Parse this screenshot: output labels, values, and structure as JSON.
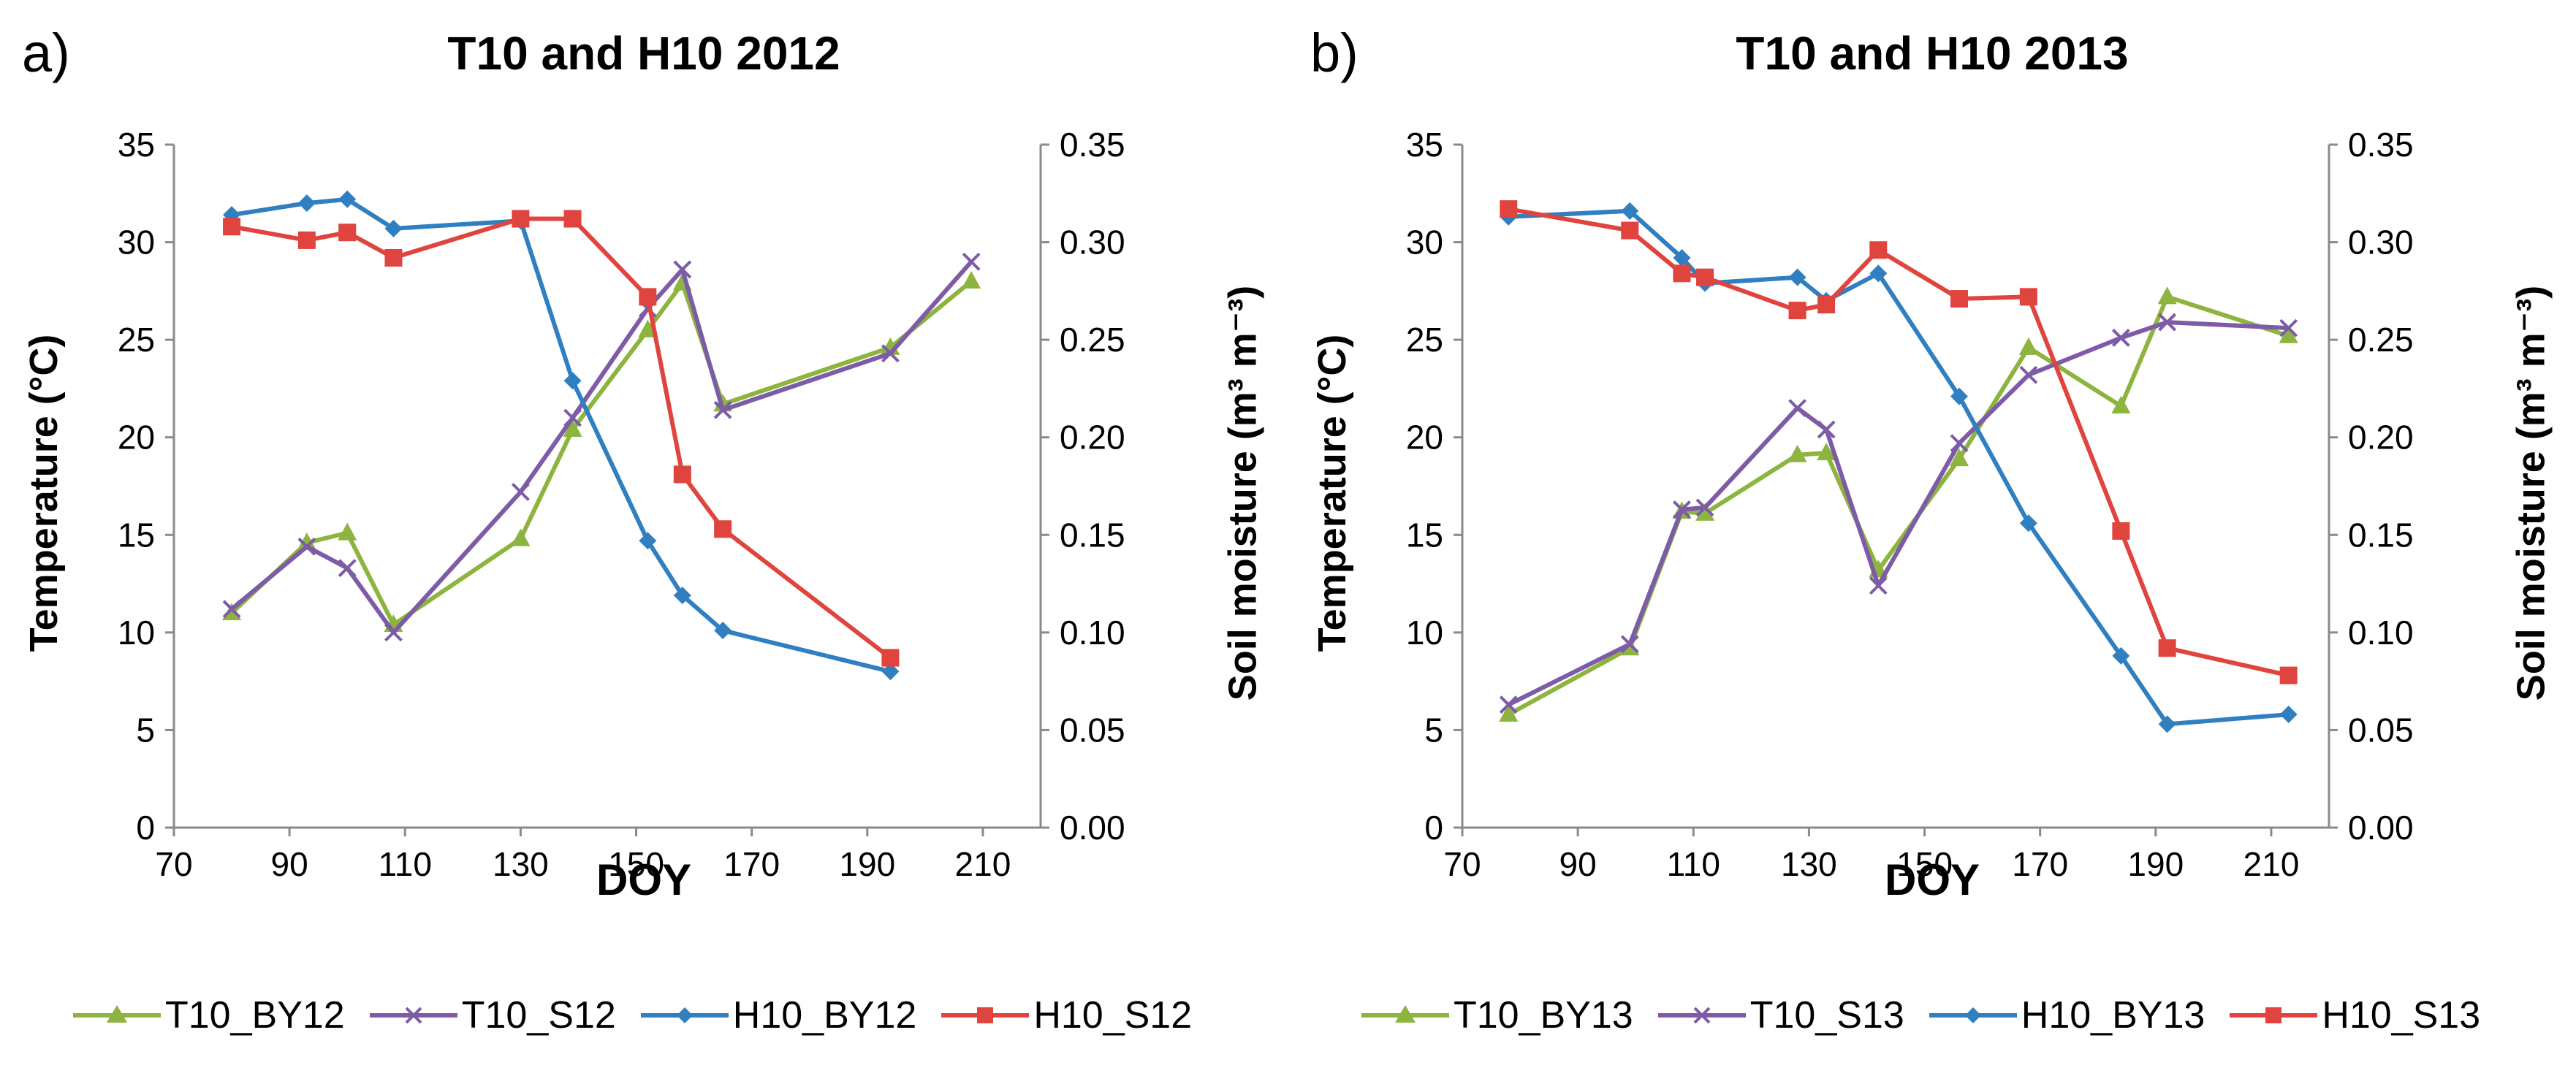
{
  "chart_data": [
    {
      "type": "line",
      "panel_label": "a)",
      "title": "T10 and H10 2012",
      "xlabel": "DOY",
      "ylabel": "Temperature (°C)",
      "ylabel_right": "Soil moisture (m³ m⁻³)",
      "xlim": [
        70,
        220
      ],
      "ylim": [
        0,
        35
      ],
      "y2lim": [
        0,
        0.35
      ],
      "x_ticks": [
        "70",
        "90",
        "110",
        "130",
        "150",
        "170",
        "190",
        "210"
      ],
      "x_tick_values": [
        70,
        90,
        110,
        130,
        150,
        170,
        190,
        210
      ],
      "y_ticks": [
        "0",
        "5",
        "10",
        "15",
        "20",
        "25",
        "30",
        "35"
      ],
      "y_tick_values": [
        0,
        5,
        10,
        15,
        20,
        25,
        30,
        35
      ],
      "y2_ticks": [
        "0.00",
        "0.05",
        "0.10",
        "0.15",
        "0.20",
        "0.25",
        "0.30",
        "0.35"
      ],
      "y2_tick_values": [
        0,
        0.05,
        0.1,
        0.15,
        0.2,
        0.25,
        0.3,
        0.35
      ],
      "legend_position": "bottom",
      "series": [
        {
          "name": "T10_BY12",
          "axis": "left",
          "marker": "triangle",
          "color": "#8DB43E",
          "x": [
            80,
            93,
            100,
            108,
            130,
            139,
            152,
            158,
            165,
            194,
            208
          ],
          "values": [
            11.0,
            14.6,
            15.1,
            10.4,
            14.8,
            20.4,
            25.5,
            27.9,
            21.7,
            24.6,
            28.0
          ]
        },
        {
          "name": "T10_S12",
          "axis": "left",
          "marker": "x",
          "color": "#7D5BA6",
          "x": [
            80,
            93,
            100,
            108,
            130,
            139,
            152,
            158,
            165,
            194,
            208
          ],
          "values": [
            11.2,
            14.4,
            13.3,
            10.0,
            17.2,
            21.0,
            26.6,
            28.6,
            21.4,
            24.3,
            29.0
          ]
        },
        {
          "name": "H10_BY12",
          "axis": "right",
          "marker": "diamond",
          "color": "#2F7FC1",
          "x": [
            80,
            93,
            100,
            108,
            130,
            139,
            152,
            158,
            165,
            194
          ],
          "values": [
            0.314,
            0.32,
            0.322,
            0.307,
            0.311,
            0.229,
            0.147,
            0.119,
            0.101,
            0.08
          ]
        },
        {
          "name": "H10_S12",
          "axis": "right",
          "marker": "square",
          "color": "#E0443E",
          "x": [
            80,
            93,
            100,
            108,
            130,
            139,
            152,
            158,
            165,
            194
          ],
          "values": [
            0.308,
            0.301,
            0.305,
            0.292,
            0.312,
            0.312,
            0.272,
            0.181,
            0.153,
            0.087
          ]
        }
      ]
    },
    {
      "type": "line",
      "panel_label": "b)",
      "title": "T10 and H10 2013",
      "xlabel": "DOY",
      "ylabel": "Temperature (°C)",
      "ylabel_right": "Soil moisture (m³ m⁻³)",
      "xlim": [
        70,
        220
      ],
      "ylim": [
        0,
        35
      ],
      "y2lim": [
        0,
        0.35
      ],
      "x_ticks": [
        "70",
        "90",
        "110",
        "130",
        "150",
        "170",
        "190",
        "210"
      ],
      "x_tick_values": [
        70,
        90,
        110,
        130,
        150,
        170,
        190,
        210
      ],
      "y_ticks": [
        "0",
        "5",
        "10",
        "15",
        "20",
        "25",
        "30",
        "35"
      ],
      "y_tick_values": [
        0,
        5,
        10,
        15,
        20,
        25,
        30,
        35
      ],
      "y2_ticks": [
        "0.00",
        "0.05",
        "0.10",
        "0.15",
        "0.20",
        "0.25",
        "0.30",
        "0.35"
      ],
      "y2_tick_values": [
        0,
        0.05,
        0.1,
        0.15,
        0.2,
        0.25,
        0.3,
        0.35
      ],
      "legend_position": "bottom",
      "series": [
        {
          "name": "T10_BY13",
          "axis": "left",
          "marker": "triangle",
          "color": "#8DB43E",
          "x": [
            78,
            99,
            108,
            112,
            128,
            133,
            142,
            156,
            168,
            184,
            192,
            213
          ],
          "values": [
            5.8,
            9.2,
            16.2,
            16.1,
            19.1,
            19.2,
            13.2,
            18.9,
            24.6,
            21.6,
            27.2,
            25.2
          ]
        },
        {
          "name": "T10_S13",
          "axis": "left",
          "marker": "x",
          "color": "#7D5BA6",
          "x": [
            78,
            99,
            108,
            112,
            128,
            133,
            142,
            156,
            168,
            184,
            192,
            213
          ],
          "values": [
            6.3,
            9.4,
            16.3,
            16.4,
            21.5,
            20.4,
            12.4,
            19.7,
            23.2,
            25.1,
            25.9,
            25.6
          ]
        },
        {
          "name": "H10_BY13",
          "axis": "right",
          "marker": "diamond",
          "color": "#2F7FC1",
          "x": [
            78,
            99,
            108,
            112,
            128,
            133,
            142,
            156,
            168,
            184,
            192,
            213
          ],
          "values": [
            0.313,
            0.316,
            0.292,
            0.279,
            0.282,
            0.27,
            0.284,
            0.221,
            0.156,
            0.088,
            0.053,
            0.058
          ]
        },
        {
          "name": "H10_S13",
          "axis": "right",
          "marker": "square",
          "color": "#E0443E",
          "x": [
            78,
            99,
            108,
            112,
            128,
            133,
            142,
            156,
            168,
            184,
            192,
            213
          ],
          "values": [
            0.317,
            0.306,
            0.284,
            0.282,
            0.265,
            0.268,
            0.296,
            0.271,
            0.272,
            0.152,
            0.092,
            0.078
          ]
        }
      ]
    }
  ]
}
